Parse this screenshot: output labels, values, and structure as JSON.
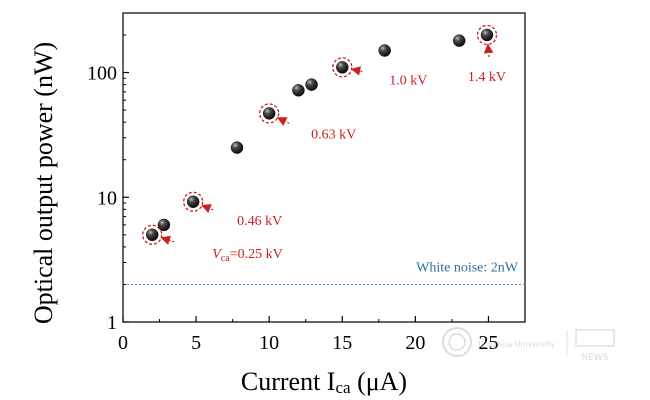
{
  "chart_data": {
    "type": "scatter",
    "xlabel_main": "Current I",
    "xlabel_sub": "ca",
    "xlabel_unit": " (μA)",
    "ylabel": "Optical output power (nW)",
    "xlim": [
      0,
      27.5
    ],
    "ylim": [
      1,
      300
    ],
    "yscale": "log",
    "x_ticks": [
      0,
      5,
      10,
      15,
      20,
      25
    ],
    "y_ticks": [
      1,
      10,
      100
    ],
    "y_tick_labels": [
      "1",
      "10",
      "100"
    ],
    "points": [
      {
        "x": 2,
        "y": 5
      },
      {
        "x": 2.8,
        "y": 6
      },
      {
        "x": 4.8,
        "y": 9.2
      },
      {
        "x": 7.8,
        "y": 25
      },
      {
        "x": 10,
        "y": 47
      },
      {
        "x": 12,
        "y": 72
      },
      {
        "x": 12.9,
        "y": 80
      },
      {
        "x": 15,
        "y": 110
      },
      {
        "x": 17.9,
        "y": 150
      },
      {
        "x": 23,
        "y": 180
      },
      {
        "x": 24.9,
        "y": 200
      }
    ],
    "highlighted": [
      {
        "x": 2,
        "y": 5,
        "label_prefix": "V",
        "label_sub": "ca",
        "label_rest": "=0.25 kV"
      },
      {
        "x": 4.8,
        "y": 9.2,
        "label": "0.46 kV"
      },
      {
        "x": 10,
        "y": 47,
        "label": "0.63 kV"
      },
      {
        "x": 15,
        "y": 110,
        "label": "1.0 kV"
      },
      {
        "x": 24.9,
        "y": 200,
        "label": "1.4 kV"
      }
    ],
    "noise_level": 2,
    "noise_label": "White noise: 2nW"
  },
  "colors": {
    "point": "#2a2a2a",
    "annotation": "#cc1f1f",
    "noise": "#2e6e9e"
  },
  "watermark": {
    "left": "Tsinghua University",
    "right": "NEWS"
  }
}
